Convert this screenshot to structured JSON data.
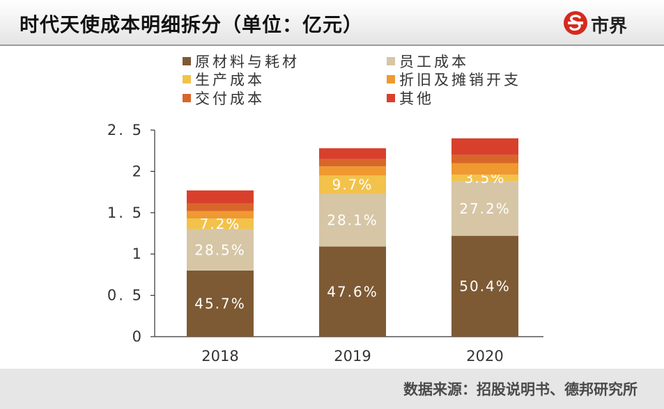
{
  "header": {
    "title": "时代天使成本明细拆分（单位：亿元）",
    "brand": "市界",
    "brand_icon": "s-circle-logo-icon"
  },
  "footer": {
    "source": "数据来源：招股说明书、德邦研究所"
  },
  "chart_data": {
    "type": "bar",
    "stacked": true,
    "categories": [
      "2018",
      "2019",
      "2020"
    ],
    "ylim": [
      0,
      2.5
    ],
    "yticks": [
      "0",
      "0.5",
      "1",
      "1.5",
      "2",
      "2.5"
    ],
    "grid": false,
    "legend_position": "top",
    "series": [
      {
        "name": "原材料与耗材",
        "color": "#7d5a34",
        "values": [
          0.8,
          1.09,
          1.22
        ],
        "labels": [
          "45.7%",
          "47.6%",
          "50.4%"
        ]
      },
      {
        "name": "员工成本",
        "color": "#d6c6a6",
        "values": [
          0.5,
          0.64,
          0.66
        ],
        "labels": [
          "28.5%",
          "28.1%",
          "27.2%"
        ]
      },
      {
        "name": "生产成本",
        "color": "#f2c24b",
        "values": [
          0.13,
          0.22,
          0.08
        ],
        "labels": [
          "7.2%",
          "9.7%",
          "3.5%"
        ]
      },
      {
        "name": "折旧及摊销开支",
        "color": "#ef9930",
        "values": [
          0.09,
          0.11,
          0.14
        ],
        "labels": [
          "",
          "",
          ""
        ]
      },
      {
        "name": "交付成本",
        "color": "#d8662a",
        "values": [
          0.09,
          0.09,
          0.1
        ],
        "labels": [
          "",
          "",
          ""
        ]
      },
      {
        "name": "其他",
        "color": "#d8402c",
        "values": [
          0.16,
          0.13,
          0.2
        ],
        "labels": [
          "",
          "",
          ""
        ]
      }
    ]
  }
}
